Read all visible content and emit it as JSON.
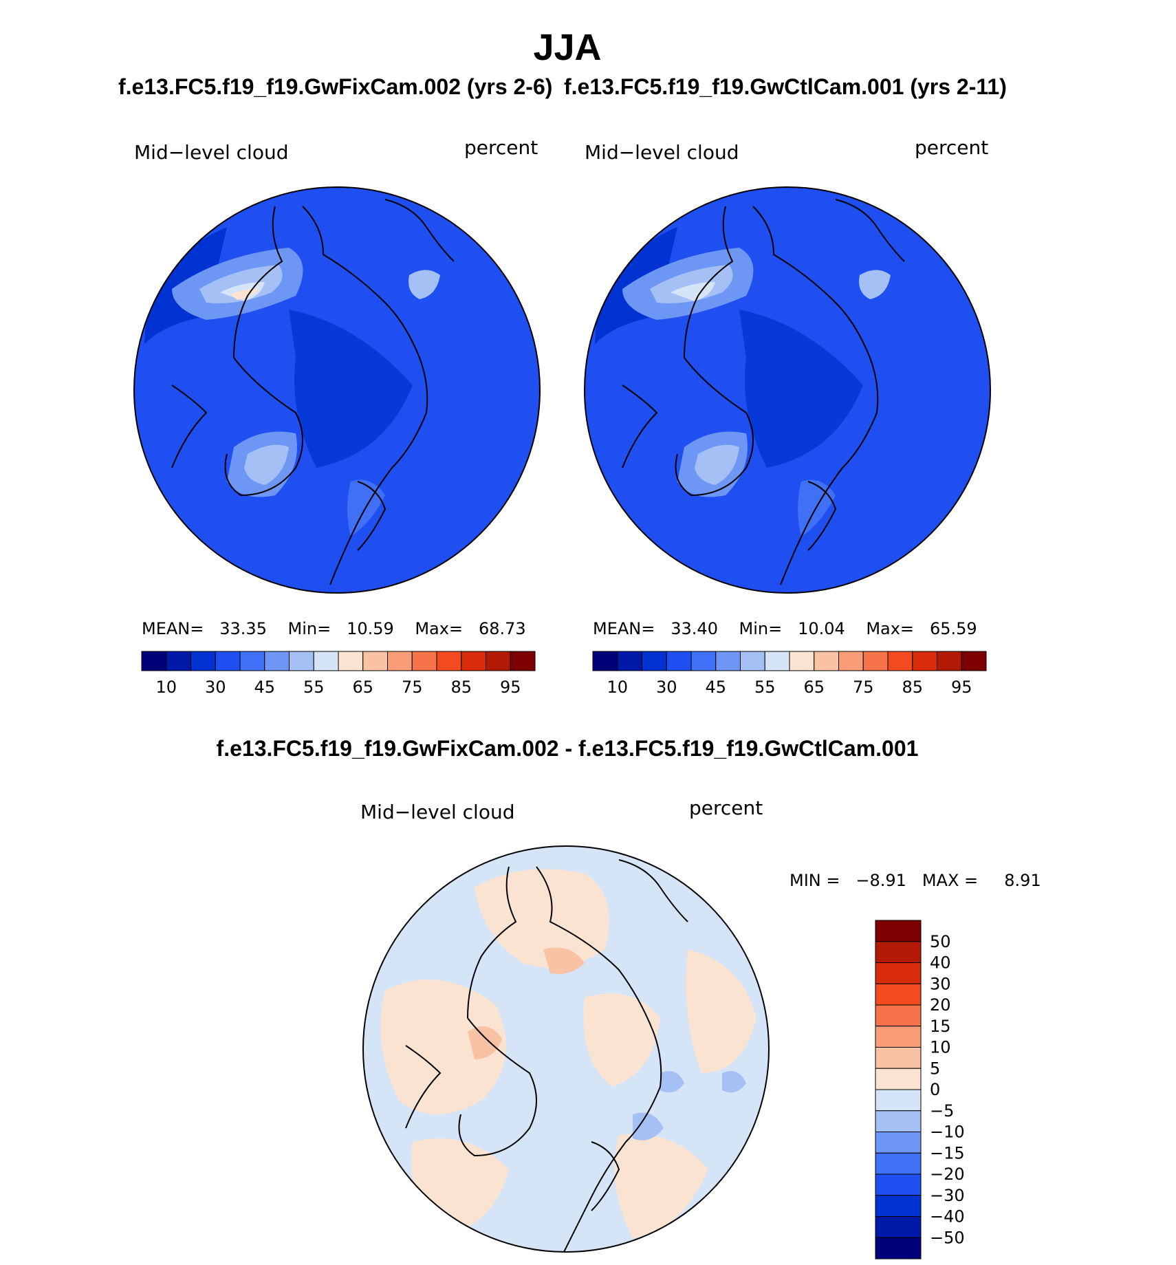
{
  "title": "JJA",
  "case_a_title": "f.e13.FC5.f19_f19.GwFixCam.002 (yrs 2-6)",
  "case_b_title": "f.e13.FC5.f19_f19.GwCtlCam.001 (yrs 2-11)",
  "diff_title": "f.e13.FC5.f19_f19.GwFixCam.002 - f.e13.FC5.f19_f19.GwCtlCam.001",
  "panels": [
    {
      "variable": "Mid−level cloud",
      "units": "percent",
      "mean_label": "MEAN=",
      "mean": "33.35",
      "min_label": "Min=",
      "min": "10.59",
      "max_label": "Max=",
      "max": "68.73"
    },
    {
      "variable": "Mid−level cloud",
      "units": "percent",
      "mean_label": "MEAN=",
      "mean": "33.40",
      "min_label": "Min=",
      "min": "10.04",
      "max_label": "Max=",
      "max": "65.59"
    }
  ],
  "diff_panel": {
    "variable": "Mid−level cloud",
    "units": "percent",
    "min_label": "MIN =",
    "min": "−8.91",
    "max_label": "MAX =",
    "max": "8.91"
  },
  "colorbar_abs": {
    "colors": [
      "#00007a",
      "#0019a8",
      "#0033d2",
      "#1f4ff0",
      "#4070f5",
      "#6e96f5",
      "#a5c0f5",
      "#d6e4f7",
      "#fbe3d2",
      "#f9c2a4",
      "#f89d76",
      "#f7744a",
      "#f24b1f",
      "#d92c0c",
      "#b21a06",
      "#7d0000"
    ],
    "labels": [
      "10",
      "30",
      "45",
      "55",
      "65",
      "75",
      "85",
      "95"
    ]
  },
  "colorbar_diff": {
    "colors": [
      "#00007a",
      "#0019a8",
      "#0033d2",
      "#1f4ff0",
      "#4070f5",
      "#6e96f5",
      "#a5c0f5",
      "#d6e4f7",
      "#fbe3d2",
      "#f9c2a4",
      "#f89d76",
      "#f7744a",
      "#f24b1f",
      "#d92c0c",
      "#b21a06",
      "#7d0000"
    ],
    "labels": [
      "50",
      "40",
      "30",
      "20",
      "15",
      "10",
      "5",
      "0",
      "−5",
      "−10",
      "−15",
      "−20",
      "−30",
      "−40",
      "−50"
    ]
  }
}
